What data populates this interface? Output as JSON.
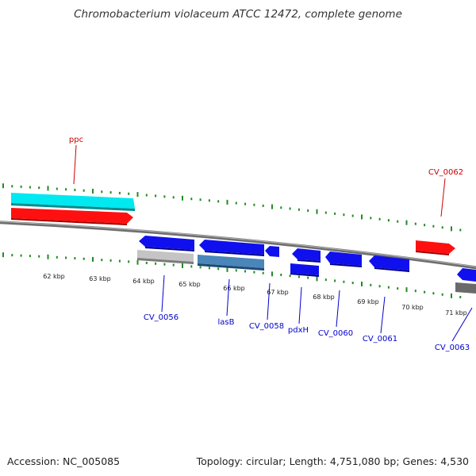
{
  "title": "Chromobacterium violaceum ATCC 12472, complete genome",
  "footer": {
    "accession": "Accession: NC_005085",
    "summary": "Topology: circular; Length: 4,751,080 bp; Genes: 4,530"
  },
  "scale": {
    "unit_suffix": " kbp",
    "labels": [
      "62",
      "63",
      "64",
      "65",
      "66",
      "67",
      "68",
      "69",
      "70",
      "71"
    ]
  },
  "colors": {
    "backbone": "#808080",
    "ticks": "#228b22",
    "label_forward": "#cc0000",
    "label_reverse": "#0000cc",
    "cyan_feature": "#00ffff",
    "red_feature": "#ff0000",
    "blue_feature": "#0000ee",
    "grey_feature": "#c0c0c0",
    "steel_feature": "#4682b4",
    "dark_grey_feature": "#606060"
  },
  "genes": {
    "forward": [
      "ppc",
      "CV_0062"
    ],
    "reverse": [
      "CV_0056",
      "lasB",
      "CV_0058",
      "pdxH",
      "CV_0060",
      "CV_0061",
      "CV_0063"
    ]
  }
}
